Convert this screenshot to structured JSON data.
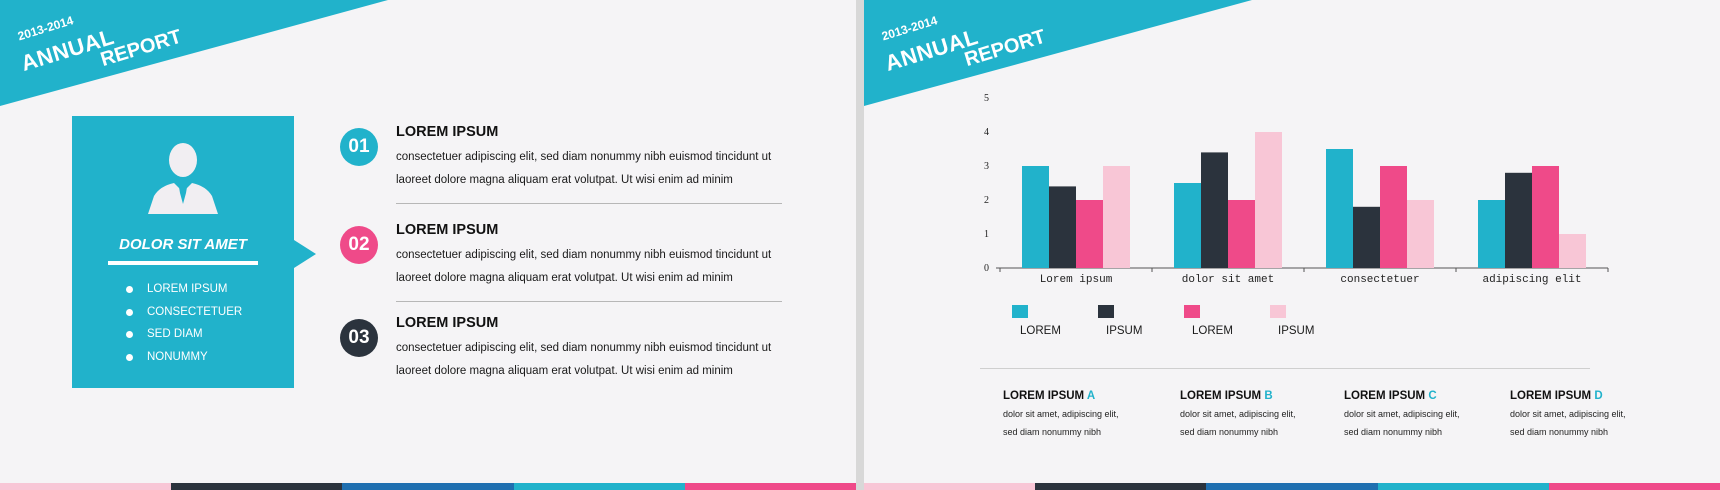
{
  "header": {
    "years": "2013-2014",
    "annual": "ANNUAL",
    "report": "REPORT"
  },
  "colors": {
    "teal": "#21b2cb",
    "dark": "#2b333d",
    "pink": "#ef4a89",
    "light_pink": "#f8c6d6",
    "blue": "#1f6fb0"
  },
  "left": {
    "profile": {
      "icon": "user-icon",
      "title": "DOLOR SIT AMET",
      "items": [
        "LOREM IPSUM",
        "CONSECTETUER",
        "SED DIAM",
        "NONUMMY"
      ]
    },
    "steps": [
      {
        "num": "01",
        "title": "LOREM IPSUM",
        "line1": "consectetuer adipiscing elit, sed diam nonummy nibh euismod tincidunt ut",
        "line2": "laoreet dolore magna aliquam erat volutpat. Ut wisi enim ad minim"
      },
      {
        "num": "02",
        "title": "LOREM IPSUM",
        "line1": "consectetuer adipiscing elit, sed diam nonummy nibh euismod tincidunt ut",
        "line2": "laoreet dolore magna aliquam erat volutpat. Ut wisi enim ad minim"
      },
      {
        "num": "03",
        "title": "LOREM IPSUM",
        "line1": "consectetuer adipiscing elit, sed diam nonummy nibh euismod tincidunt ut",
        "line2": "laoreet dolore magna aliquam erat volutpat. Ut wisi enim ad minim"
      }
    ]
  },
  "chart_data": {
    "type": "bar",
    "categories": [
      "Lorem ipsum",
      "dolor sit amet",
      "consectetuer",
      "adipiscing elit"
    ],
    "series": [
      {
        "name": "LOREM",
        "color": "#21b2cb",
        "values": [
          3,
          2.5,
          3.5,
          2
        ]
      },
      {
        "name": "IPSUM",
        "color": "#2b333d",
        "values": [
          2.4,
          3.4,
          1.8,
          2.8
        ]
      },
      {
        "name": "LOREM",
        "color": "#ef4a89",
        "values": [
          2,
          2,
          3,
          3
        ]
      },
      {
        "name": "IPSUM",
        "color": "#f8c6d6",
        "values": [
          3,
          4,
          2,
          1
        ]
      }
    ],
    "ylim": [
      0,
      5
    ],
    "yticks": [
      "0",
      "1",
      "2",
      "3",
      "4",
      "5"
    ],
    "legend": "bottom-left",
    "grid": false
  },
  "columns": [
    {
      "title": "LOREM IPSUM ",
      "suffix": "A",
      "line1": "dolor sit amet, adipiscing elit,",
      "line2": "sed diam nonummy nibh"
    },
    {
      "title": "LOREM IPSUM ",
      "suffix": "B",
      "line1": "dolor sit amet, adipiscing elit,",
      "line2": "sed diam nonummy nibh"
    },
    {
      "title": "LOREM IPSUM ",
      "suffix": "C",
      "line1": "dolor sit amet, adipiscing elit,",
      "line2": "sed diam nonummy nibh"
    },
    {
      "title": "LOREM IPSUM ",
      "suffix": "D",
      "line1": "dolor sit amet, adipiscing elit,",
      "line2": "sed diam nonummy nibh"
    }
  ]
}
